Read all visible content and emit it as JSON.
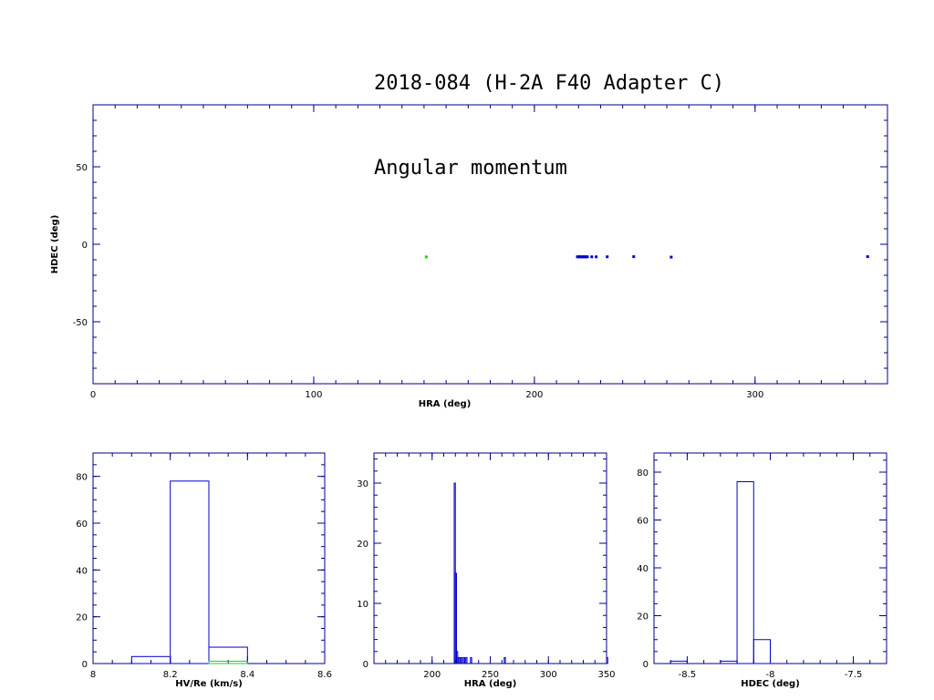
{
  "header": {
    "line1": "2018-084 (H-2A F40 Adapter C)",
    "line2": "Angular momentum"
  },
  "colors": {
    "axis": "#00008b",
    "series_blue": "#0000cc",
    "series_green": "#22cc22",
    "label": "#000000"
  },
  "chart_data": [
    {
      "type": "scatter",
      "xlabel": "HRA (deg)",
      "ylabel": "HDEC (deg)",
      "xlim": [
        0,
        360
      ],
      "ylim": [
        -90,
        90
      ],
      "xticks": [
        0,
        100,
        200,
        300
      ],
      "yticks": [
        50,
        0,
        -50
      ],
      "series": [
        {
          "color": "green",
          "points": [
            [
              151,
              -8.2
            ]
          ]
        },
        {
          "color": "blue",
          "points": [
            [
              219.5,
              -8.1
            ],
            [
              220,
              -8.1
            ],
            [
              220.5,
              -8.1
            ],
            [
              221,
              -8.1
            ],
            [
              221.5,
              -8.1
            ],
            [
              222,
              -8.1
            ],
            [
              222.5,
              -8.1
            ],
            [
              223,
              -8.1
            ],
            [
              223.5,
              -8.1
            ],
            [
              224,
              -8.1
            ],
            [
              226,
              -8.1
            ],
            [
              228,
              -8.1
            ],
            [
              233,
              -8.1
            ],
            [
              245,
              -8.0
            ],
            [
              262,
              -8.3
            ],
            [
              351,
              -8.0
            ]
          ]
        }
      ]
    },
    {
      "type": "histogram",
      "xlabel": "HV/Re (km/s)",
      "ylabel": "",
      "xlim": [
        8,
        8.6
      ],
      "ylim": [
        0,
        90
      ],
      "xticks": [
        "8",
        "8.2",
        "8.4",
        "8.6"
      ],
      "yticks": [
        "0",
        "20",
        "40",
        "60",
        "80"
      ],
      "series": [
        {
          "color": "blue",
          "bins": [
            [
              8.1,
              8.2,
              3
            ],
            [
              8.2,
              8.3,
              78
            ],
            [
              8.3,
              8.4,
              7
            ]
          ]
        },
        {
          "color": "green",
          "bins": [
            [
              8.3,
              8.4,
              1
            ]
          ]
        }
      ]
    },
    {
      "type": "histogram",
      "xlabel": "HRA (deg)",
      "ylabel": "",
      "xlim": [
        150,
        350
      ],
      "ylim": [
        0,
        35
      ],
      "xticks": [
        "200",
        "250",
        "300",
        "350"
      ],
      "yticks": [
        "0",
        "10",
        "20",
        "30"
      ],
      "series": [
        {
          "color": "blue",
          "bins": [
            [
              219,
              220,
              30
            ],
            [
              220,
              221,
              15
            ],
            [
              221,
              222,
              2
            ],
            [
              222,
              223,
              1
            ],
            [
              223,
              224,
              1
            ],
            [
              225,
              226,
              1
            ],
            [
              227,
              228,
              1
            ],
            [
              229,
              230,
              1
            ],
            [
              233,
              234,
              1
            ],
            [
              262,
              263,
              1
            ],
            [
              350,
              351,
              1
            ]
          ]
        }
      ]
    },
    {
      "type": "histogram",
      "xlabel": "HDEC (deg)",
      "ylabel": "",
      "xlim": [
        -8.7,
        -7.3
      ],
      "ylim": [
        0,
        88
      ],
      "xticks": [
        "-8.5",
        "-8",
        "-7.5"
      ],
      "yticks": [
        "0",
        "20",
        "40",
        "60",
        "80"
      ],
      "series": [
        {
          "color": "blue",
          "bins": [
            [
              -8.6,
              -8.5,
              1
            ],
            [
              -8.3,
              -8.2,
              1
            ],
            [
              -8.2,
              -8.1,
              76
            ],
            [
              -8.1,
              -8.0,
              10
            ]
          ]
        }
      ]
    }
  ]
}
